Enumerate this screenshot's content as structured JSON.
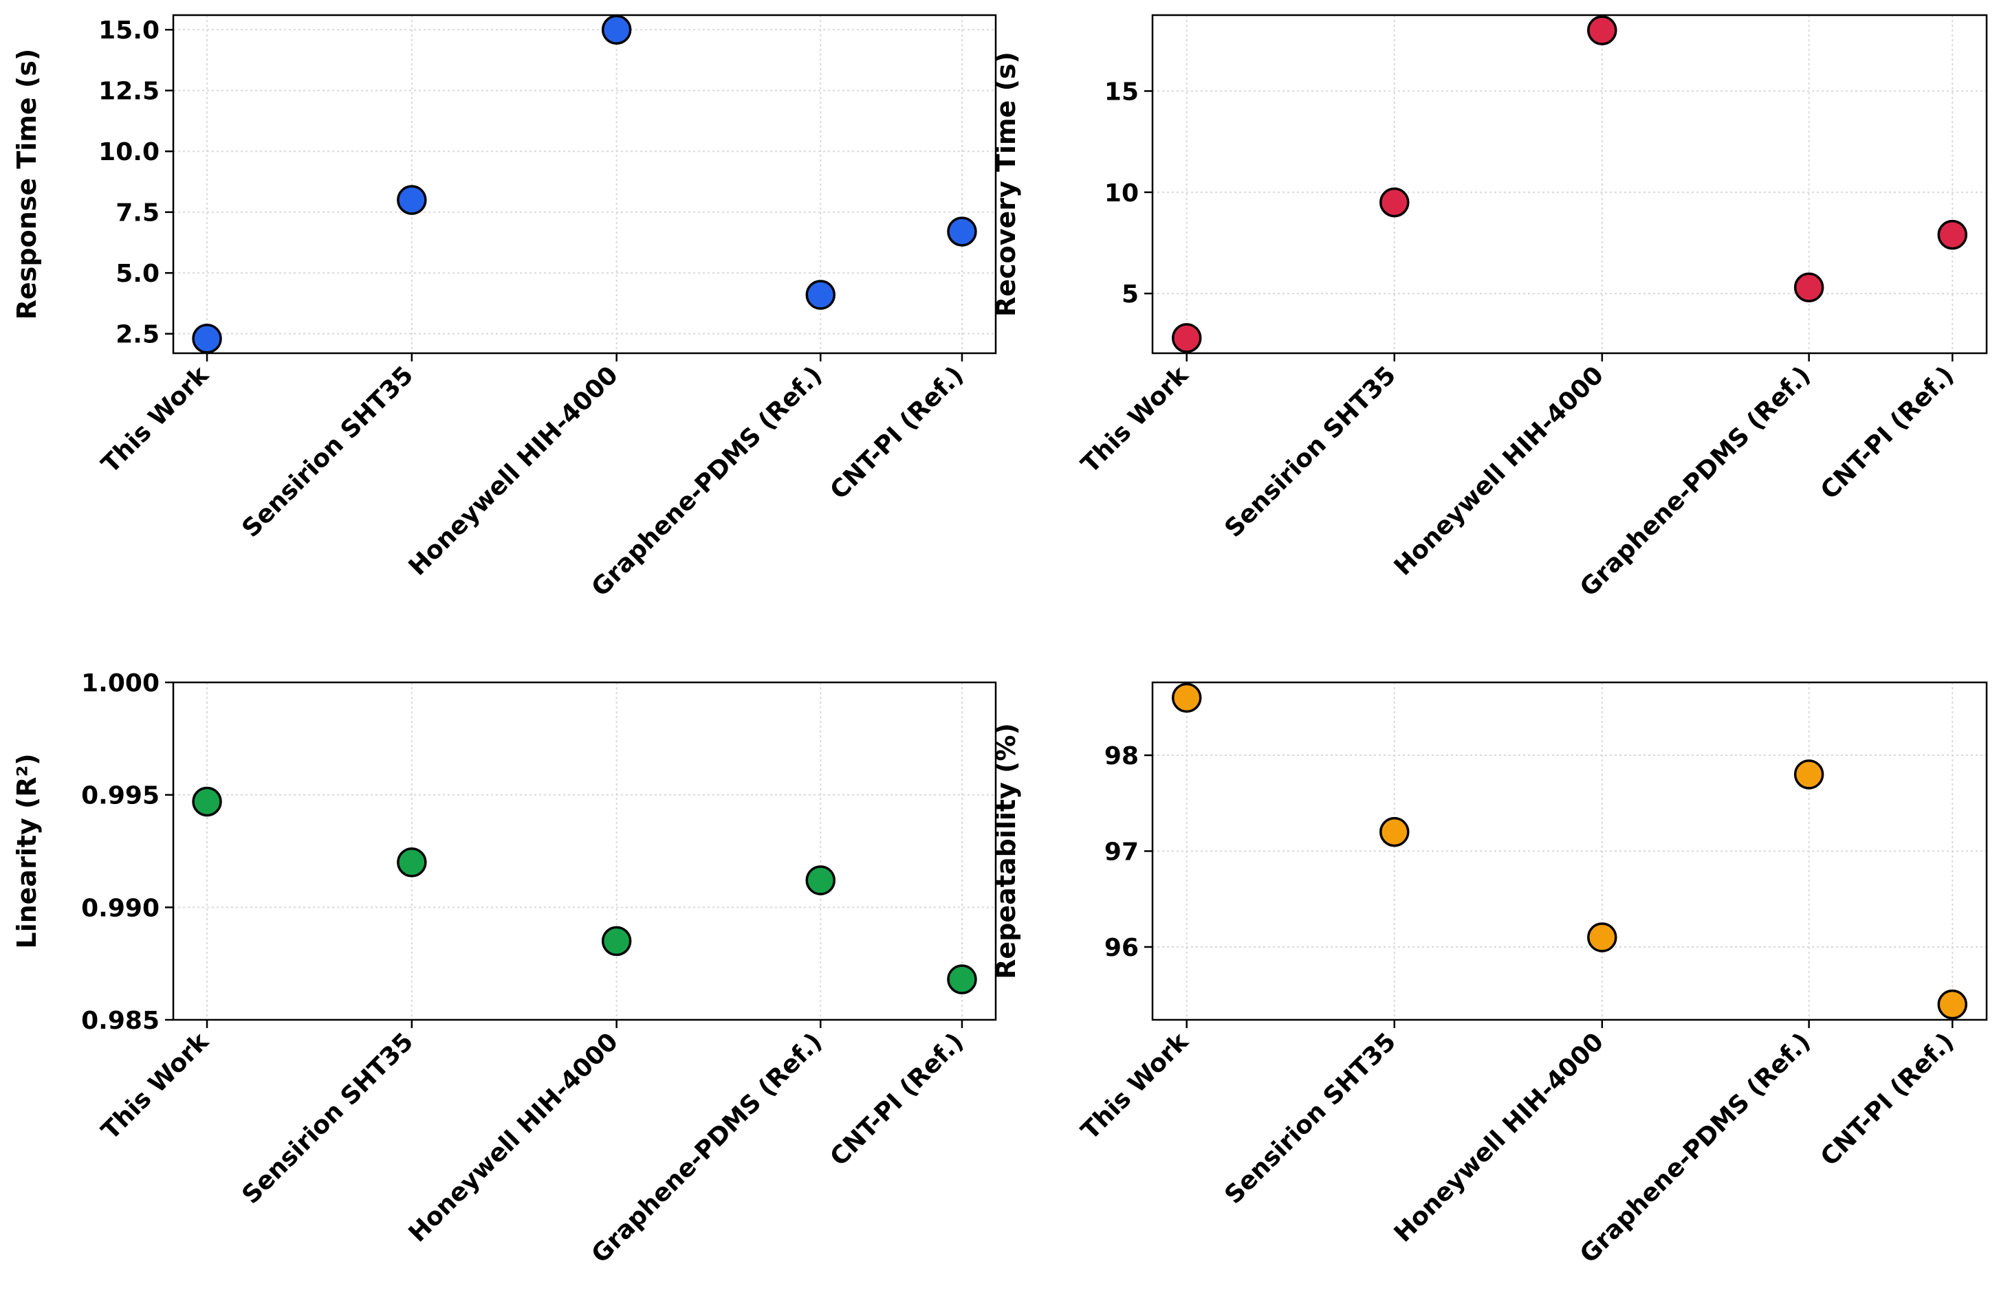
{
  "chart_data": [
    {
      "type": "scatter",
      "categories": [
        "This Work",
        "Sensirion SHT35",
        "Honeywell HIH-4000",
        "Graphene-PDMS (Ref.)",
        "CNT-PI (Ref.)"
      ],
      "values": [
        2.3,
        8.0,
        15.0,
        4.1,
        6.7
      ],
      "ylabel": "Response Time (s)",
      "ylim": [
        1.7,
        15.6
      ],
      "yticks": [
        2.5,
        5.0,
        7.5,
        10.0,
        12.5,
        15.0
      ],
      "ytick_labels": [
        "2.5",
        "5.0",
        "7.5",
        "10.0",
        "12.5",
        "15.0"
      ],
      "color": "#2563eb",
      "grid": true
    },
    {
      "type": "scatter",
      "categories": [
        "This Work",
        "Sensirion SHT35",
        "Honeywell HIH-4000",
        "Graphene-PDMS (Ref.)",
        "CNT-PI (Ref.)"
      ],
      "values": [
        2.8,
        9.5,
        18.0,
        5.3,
        7.9
      ],
      "ylabel": "Recovery Time (s)",
      "ylim": [
        2.05,
        18.75
      ],
      "yticks": [
        5,
        10,
        15
      ],
      "ytick_labels": [
        "5",
        "10",
        "15"
      ],
      "color": "#dc2648",
      "grid": true
    },
    {
      "type": "scatter",
      "categories": [
        "This Work",
        "Sensirion SHT35",
        "Honeywell HIH-4000",
        "Graphene-PDMS (Ref.)",
        "CNT-PI (Ref.)"
      ],
      "values": [
        0.9947,
        0.992,
        0.9885,
        0.9912,
        0.9868
      ],
      "ylabel": "Linearity (R²)",
      "ylim": [
        0.985,
        1.0
      ],
      "yticks": [
        0.985,
        0.99,
        0.995,
        1.0
      ],
      "ytick_labels": [
        "0.985",
        "0.990",
        "0.995",
        "1.000"
      ],
      "color": "#16a34a",
      "grid": true
    },
    {
      "type": "scatter",
      "categories": [
        "This Work",
        "Sensirion SHT35",
        "Honeywell HIH-4000",
        "Graphene-PDMS (Ref.)",
        "CNT-PI (Ref.)"
      ],
      "values": [
        98.6,
        97.2,
        96.1,
        97.8,
        95.4
      ],
      "ylabel": "Repeatability (%)",
      "ylim": [
        95.24,
        98.76
      ],
      "yticks": [
        96,
        97,
        98
      ],
      "ytick_labels": [
        "96",
        "97",
        "98"
      ],
      "color": "#f59e0b",
      "grid": true
    }
  ]
}
